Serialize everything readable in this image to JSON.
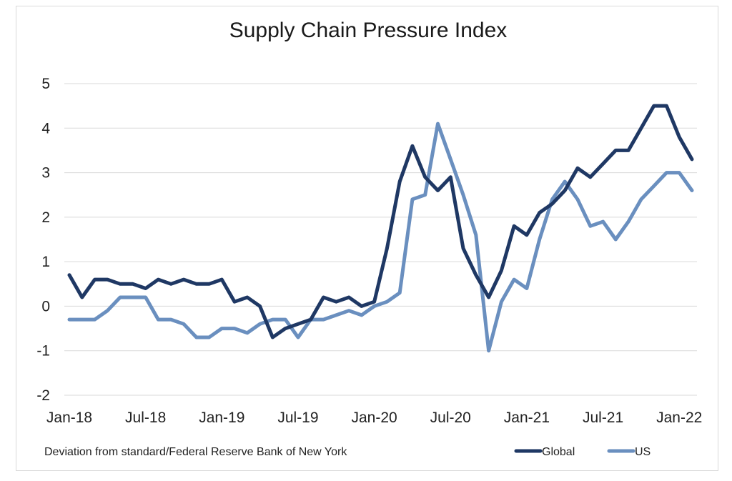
{
  "chart_data": {
    "type": "line",
    "title": "Supply Chain Pressure Index",
    "note": "Deviation from standard/Federal Reserve Bank of New York",
    "ylim": [
      -2,
      5
    ],
    "y_ticks": [
      "5",
      "4",
      "3",
      "2",
      "1",
      "0",
      "-1",
      "-2"
    ],
    "x_tick_labels": [
      "Jan-18",
      "Jul-18",
      "Jan-19",
      "Jul-19",
      "Jan-20",
      "Jul-20",
      "Jan-21",
      "Jul-21",
      "Jan-22"
    ],
    "x": [
      "Jan-18",
      "Feb-18",
      "Mar-18",
      "Apr-18",
      "May-18",
      "Jun-18",
      "Jul-18",
      "Aug-18",
      "Sep-18",
      "Oct-18",
      "Nov-18",
      "Dec-18",
      "Jan-19",
      "Feb-19",
      "Mar-19",
      "Apr-19",
      "May-19",
      "Jun-19",
      "Jul-19",
      "Aug-19",
      "Sep-19",
      "Oct-19",
      "Nov-19",
      "Dec-19",
      "Jan-20",
      "Feb-20",
      "Mar-20",
      "Apr-20",
      "May-20",
      "Jun-20",
      "Jul-20",
      "Aug-20",
      "Sep-20",
      "Oct-20",
      "Nov-20",
      "Dec-20",
      "Jan-21",
      "Feb-21",
      "Mar-21",
      "Apr-21",
      "May-21",
      "Jun-21",
      "Jul-21",
      "Aug-21",
      "Sep-21",
      "Oct-21",
      "Nov-21",
      "Dec-21",
      "Jan-22",
      "Feb-22"
    ],
    "series": [
      {
        "name": "Global",
        "color": "#1f3864",
        "values": [
          0.7,
          0.2,
          0.6,
          0.6,
          0.5,
          0.5,
          0.4,
          0.6,
          0.5,
          0.6,
          0.5,
          0.5,
          0.6,
          0.1,
          0.2,
          0.0,
          -0.7,
          -0.5,
          -0.4,
          -0.3,
          0.2,
          0.1,
          0.2,
          0.0,
          0.1,
          1.3,
          2.8,
          3.6,
          2.9,
          2.6,
          2.9,
          1.3,
          0.7,
          0.2,
          0.8,
          1.8,
          1.6,
          2.1,
          2.3,
          2.6,
          3.1,
          2.9,
          3.2,
          3.5,
          3.5,
          4.0,
          4.5,
          4.5,
          3.8,
          3.3
        ]
      },
      {
        "name": "US",
        "color": "#6a8fbf",
        "values": [
          -0.3,
          -0.3,
          -0.3,
          -0.1,
          0.2,
          0.2,
          0.2,
          -0.3,
          -0.3,
          -0.4,
          -0.7,
          -0.7,
          -0.5,
          -0.5,
          -0.6,
          -0.4,
          -0.3,
          -0.3,
          -0.7,
          -0.3,
          -0.3,
          -0.2,
          -0.1,
          -0.2,
          0.0,
          0.1,
          0.3,
          2.4,
          2.5,
          4.1,
          3.3,
          2.5,
          1.6,
          -1.0,
          0.1,
          0.6,
          0.4,
          1.5,
          2.4,
          2.8,
          2.4,
          1.8,
          1.9,
          1.5,
          1.9,
          2.4,
          2.7,
          3.0,
          3.0,
          2.6
        ]
      }
    ],
    "grid": true,
    "legend_position": "bottom-right"
  }
}
